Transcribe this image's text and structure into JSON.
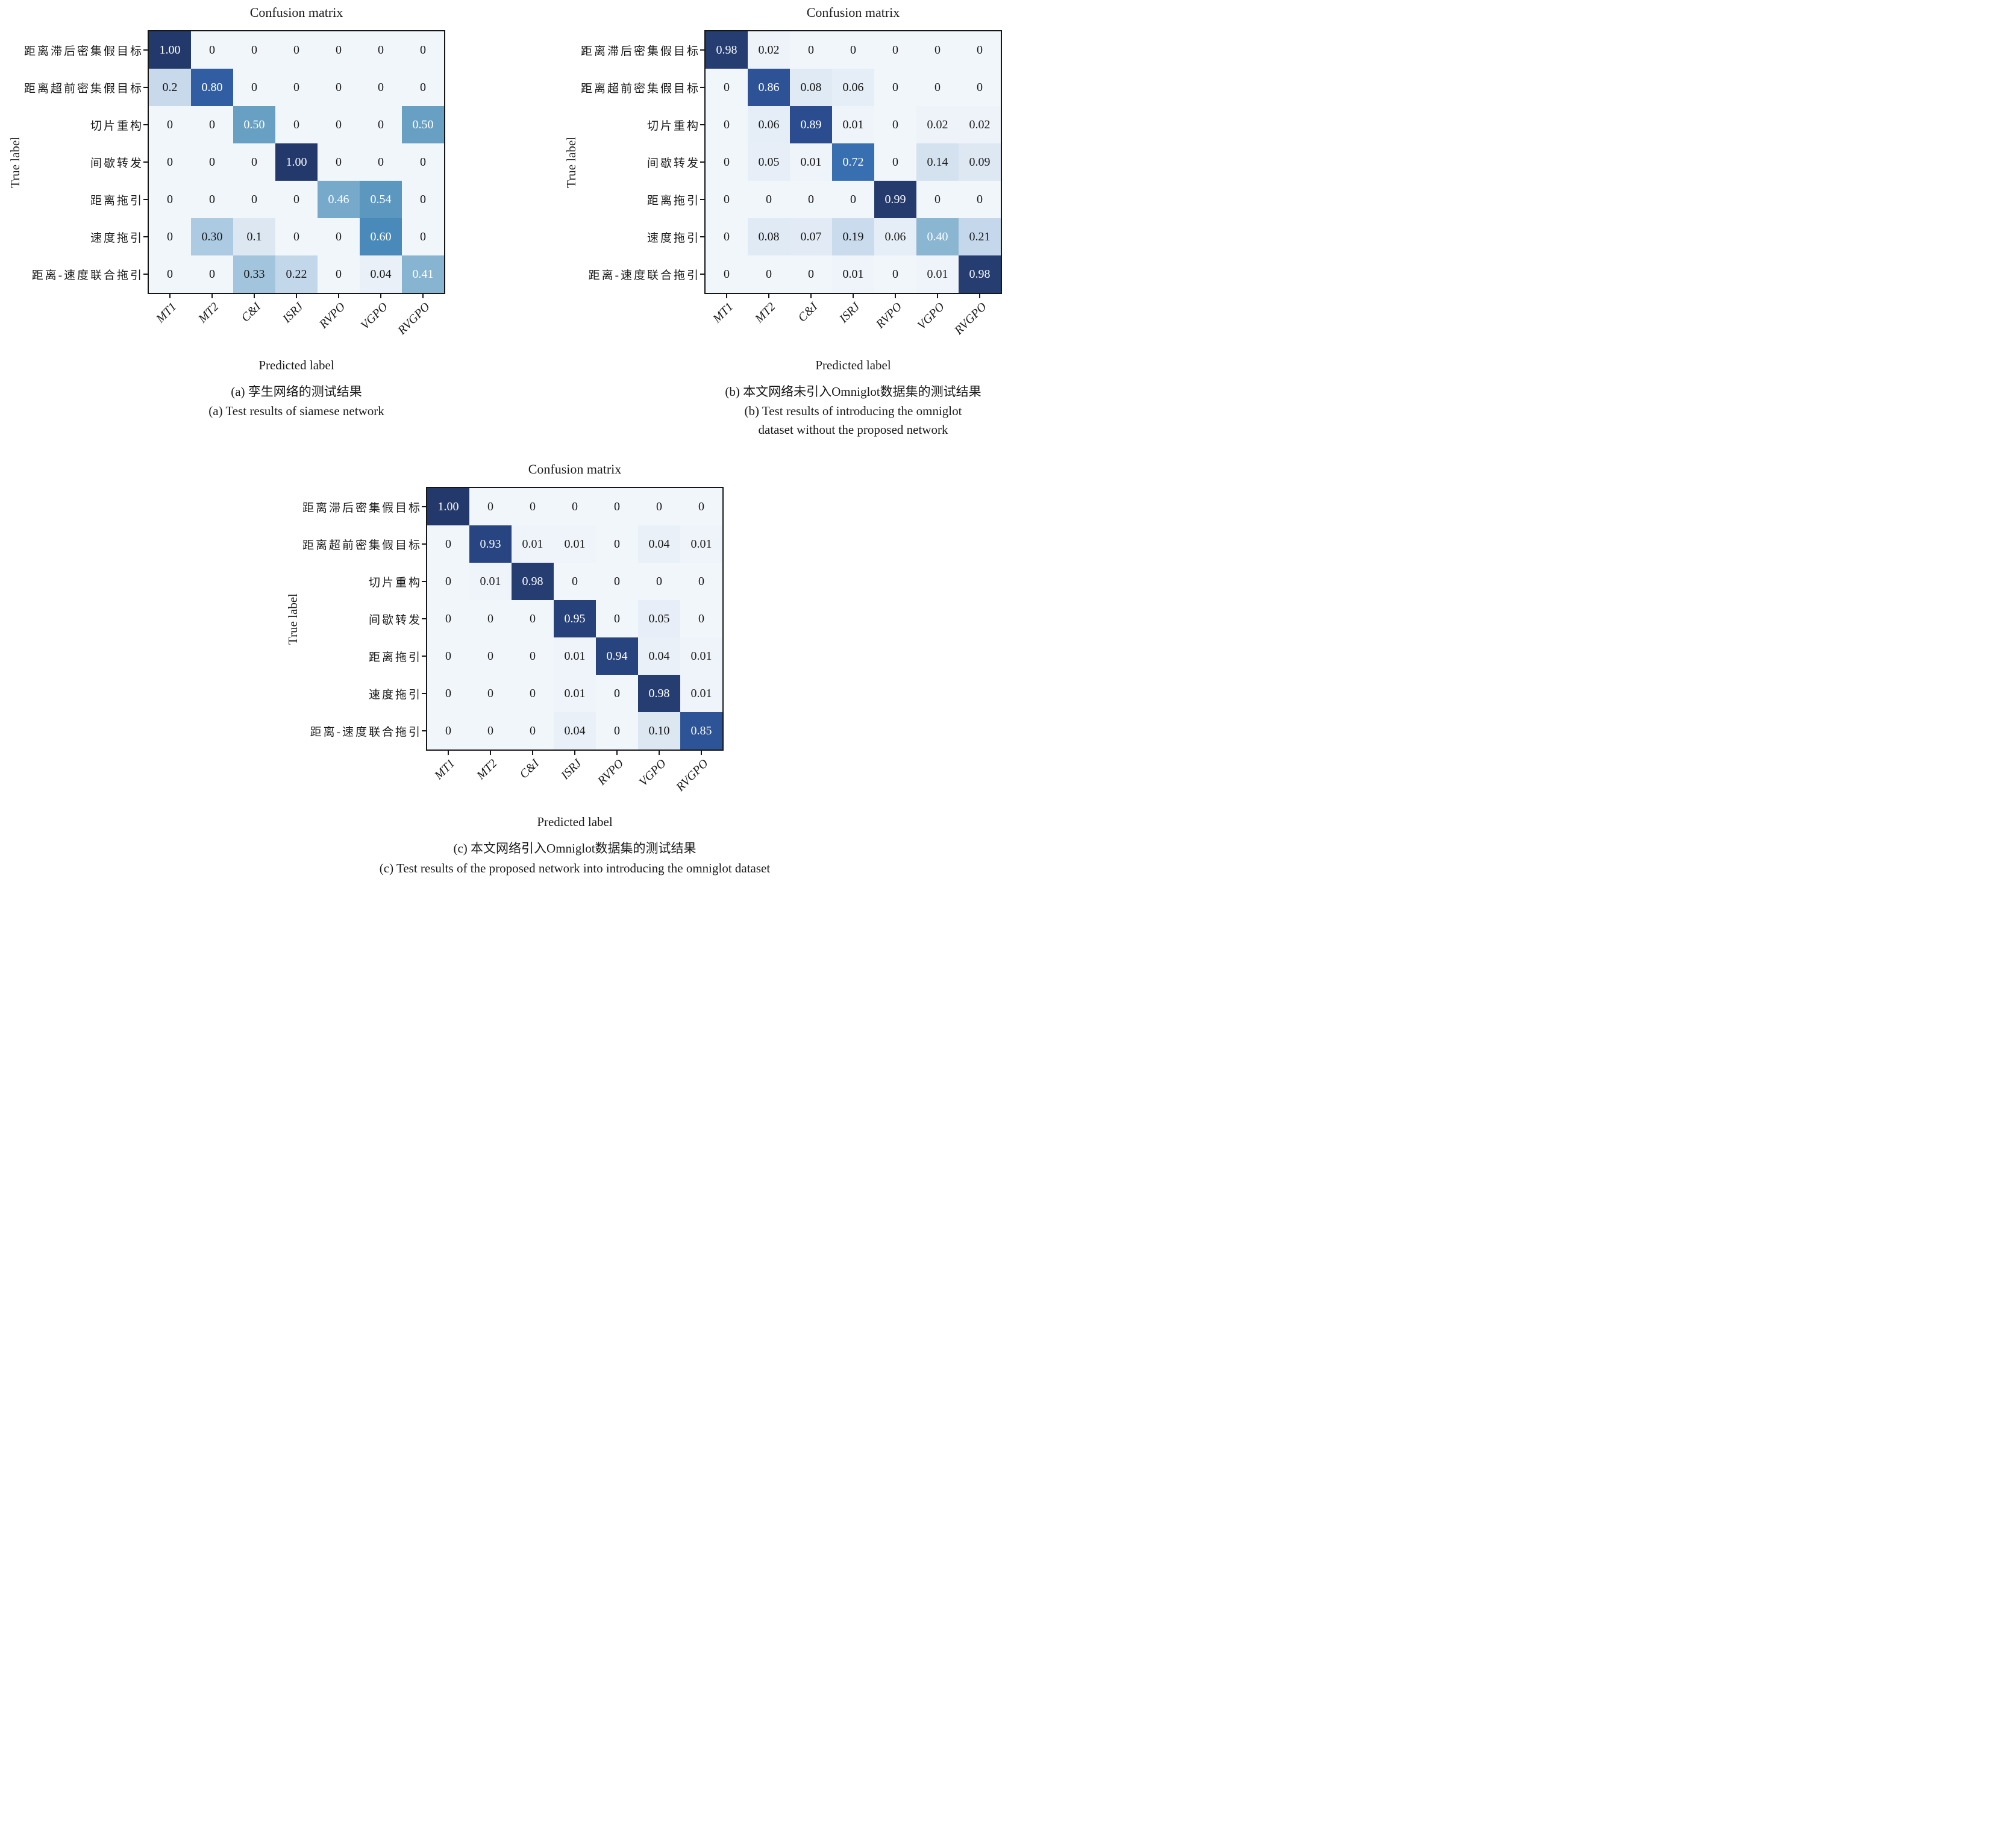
{
  "page": {
    "background": "#ffffff",
    "text_color": "#1a1a1a",
    "cell_text_white_threshold": 0.4,
    "colormap_stops": [
      [
        0.0,
        "#f1f6fb"
      ],
      [
        0.125,
        "#d7e3f0"
      ],
      [
        0.25,
        "#bdd3e8"
      ],
      [
        0.375,
        "#93bcd6"
      ],
      [
        0.5,
        "#68a0c4"
      ],
      [
        0.625,
        "#4284b8"
      ],
      [
        0.75,
        "#3468ad"
      ],
      [
        0.875,
        "#2c4f93"
      ],
      [
        1.0,
        "#24396b"
      ]
    ]
  },
  "chart_data": [
    {
      "type": "heatmap",
      "panel": "a",
      "title": "Confusion matrix",
      "xlabel": "Predicted label",
      "ylabel": "True label",
      "x_tick_labels": [
        "MT1",
        "MT2",
        "C&I",
        "ISRJ",
        "RVPO",
        "VGPO",
        "RVGPO"
      ],
      "y_tick_labels": [
        "距离滞后密集假目标",
        "距离超前密集假目标",
        "切片重构",
        "间歇转发",
        "距离拖引",
        "速度拖引",
        "距离-速度联合拖引"
      ],
      "cells": [
        [
          "1.00",
          "0",
          "0",
          "0",
          "0",
          "0",
          "0"
        ],
        [
          "0.2",
          "0.80",
          "0",
          "0",
          "0",
          "0",
          "0"
        ],
        [
          "0",
          "0",
          "0.50",
          "0",
          "0",
          "0",
          "0.50"
        ],
        [
          "0",
          "0",
          "0",
          "1.00",
          "0",
          "0",
          "0"
        ],
        [
          "0",
          "0",
          "0",
          "0",
          "0.46",
          "0.54",
          "0"
        ],
        [
          "0",
          "0.30",
          "0.1",
          "0",
          "0",
          "0.60",
          "0"
        ],
        [
          "0",
          "0",
          "0.33",
          "0.22",
          "0",
          "0.04",
          "0.41"
        ]
      ],
      "caption_zh": "(a) 孪生网络的测试结果",
      "caption_en": "(a) Test results of siamese network"
    },
    {
      "type": "heatmap",
      "panel": "b",
      "title": "Confusion matrix",
      "xlabel": "Predicted label",
      "ylabel": "True label",
      "x_tick_labels": [
        "MT1",
        "MT2",
        "C&I",
        "ISRJ",
        "RVPO",
        "VGPO",
        "RVGPO"
      ],
      "y_tick_labels": [
        "距离滞后密集假目标",
        "距离超前密集假目标",
        "切片重构",
        "间歇转发",
        "距离拖引",
        "速度拖引",
        "距离-速度联合拖引"
      ],
      "cells": [
        [
          "0.98",
          "0.02",
          "0",
          "0",
          "0",
          "0",
          "0"
        ],
        [
          "0",
          "0.86",
          "0.08",
          "0.06",
          "0",
          "0",
          "0"
        ],
        [
          "0",
          "0.06",
          "0.89",
          "0.01",
          "0",
          "0.02",
          "0.02"
        ],
        [
          "0",
          "0.05",
          "0.01",
          "0.72",
          "0",
          "0.14",
          "0.09"
        ],
        [
          "0",
          "0",
          "0",
          "0",
          "0.99",
          "0",
          "0"
        ],
        [
          "0",
          "0.08",
          "0.07",
          "0.19",
          "0.06",
          "0.40",
          "0.21"
        ],
        [
          "0",
          "0",
          "0",
          "0.01",
          "0",
          "0.01",
          "0.98"
        ]
      ],
      "caption_zh": "(b) 本文网络未引入Omniglot数据集的测试结果",
      "caption_en": "(b) Test results of introducing the omniglot\ndataset without the proposed network"
    },
    {
      "type": "heatmap",
      "panel": "c",
      "title": "Confusion matrix",
      "xlabel": "Predicted label",
      "ylabel": "True label",
      "x_tick_labels": [
        "MT1",
        "MT2",
        "C&I",
        "ISRJ",
        "RVPO",
        "VGPO",
        "RVGPO"
      ],
      "y_tick_labels": [
        "距离滞后密集假目标",
        "距离超前密集假目标",
        "切片重构",
        "间歇转发",
        "距离拖引",
        "速度拖引",
        "距离-速度联合拖引"
      ],
      "cells": [
        [
          "1.00",
          "0",
          "0",
          "0",
          "0",
          "0",
          "0"
        ],
        [
          "0",
          "0.93",
          "0.01",
          "0.01",
          "0",
          "0.04",
          "0.01"
        ],
        [
          "0",
          "0.01",
          "0.98",
          "0",
          "0",
          "0",
          "0"
        ],
        [
          "0",
          "0",
          "0",
          "0.95",
          "0",
          "0.05",
          "0"
        ],
        [
          "0",
          "0",
          "0",
          "0.01",
          "0.94",
          "0.04",
          "0.01"
        ],
        [
          "0",
          "0",
          "0",
          "0.01",
          "0",
          "0.98",
          "0.01"
        ],
        [
          "0",
          "0",
          "0",
          "0.04",
          "0",
          "0.10",
          "0.85"
        ]
      ],
      "caption_zh": "(c) 本文网络引入Omniglot数据集的测试结果",
      "caption_en": "(c) Test results of the proposed network into introducing the omniglot dataset"
    }
  ]
}
